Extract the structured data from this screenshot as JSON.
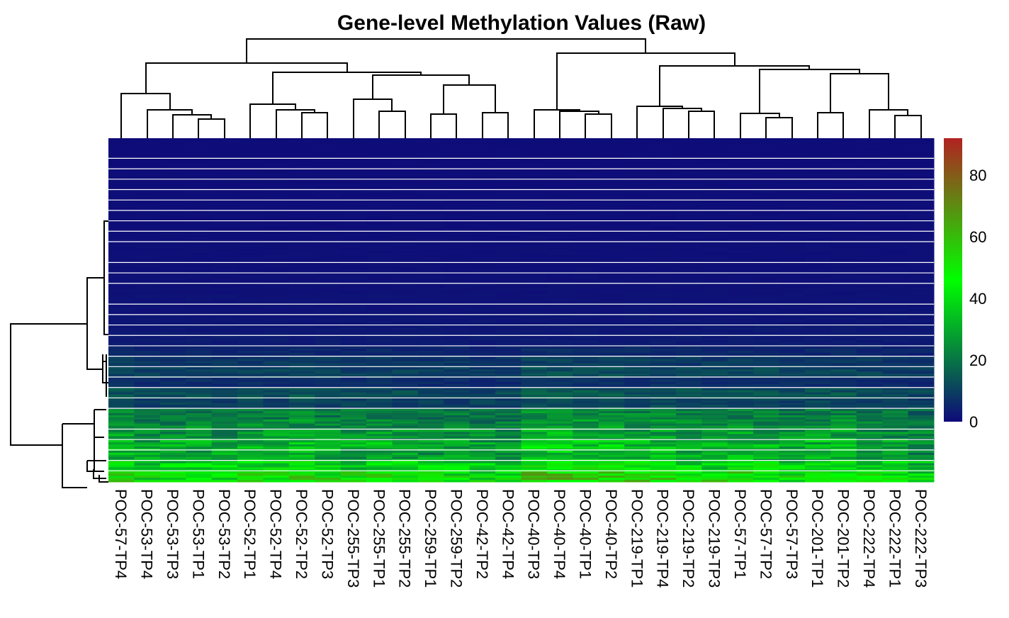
{
  "chart_data": {
    "type": "heatmap",
    "title": "Gene-level Methylation Values (Raw)",
    "columns": [
      "POC-57-TP4",
      "POC-53-TP4",
      "POC-53-TP3",
      "POC-53-TP1",
      "POC-53-TP2",
      "POC-52-TP1",
      "POC-52-TP4",
      "POC-52-TP2",
      "POC-52-TP3",
      "POC-255-TP3",
      "POC-255-TP1",
      "POC-255-TP2",
      "POC-259-TP1",
      "POC-259-TP2",
      "POC-42-TP2",
      "POC-42-TP4",
      "POC-40-TP3",
      "POC-40-TP4",
      "POC-40-TP1",
      "POC-40-TP2",
      "POC-219-TP1",
      "POC-219-TP4",
      "POC-219-TP2",
      "POC-219-TP3",
      "POC-57-TP1",
      "POC-57-TP2",
      "POC-57-TP3",
      "POC-201-TP1",
      "POC-201-TP2",
      "POC-222-TP4",
      "POC-222-TP1",
      "POC-222-TP3"
    ],
    "row_band_means": [
      0.5,
      0.5,
      0.5,
      0.6,
      0.6,
      0.7,
      0.7,
      0.8,
      0.8,
      0.9,
      1,
      1,
      1,
      1.2,
      1.2,
      1.5,
      1.5,
      2,
      2.5,
      3,
      5,
      8,
      10,
      6,
      12,
      10,
      20,
      22,
      25,
      30,
      28,
      38,
      45
    ],
    "column_offsets": [
      2,
      0,
      0,
      1,
      0,
      1,
      1,
      2,
      1,
      0,
      1,
      0,
      -1,
      0,
      -1,
      -1,
      4,
      4,
      3,
      3,
      2,
      2,
      1,
      1,
      2,
      1,
      0,
      1,
      2,
      0,
      -1,
      -2
    ],
    "legend": {
      "min": 0,
      "max": 92,
      "ticks": [
        0,
        20,
        40,
        60,
        80
      ],
      "colors": [
        "#0E0A7A",
        "#00FF00",
        "#B22222"
      ]
    },
    "row_dendrogram": true,
    "column_dendrogram": true
  }
}
